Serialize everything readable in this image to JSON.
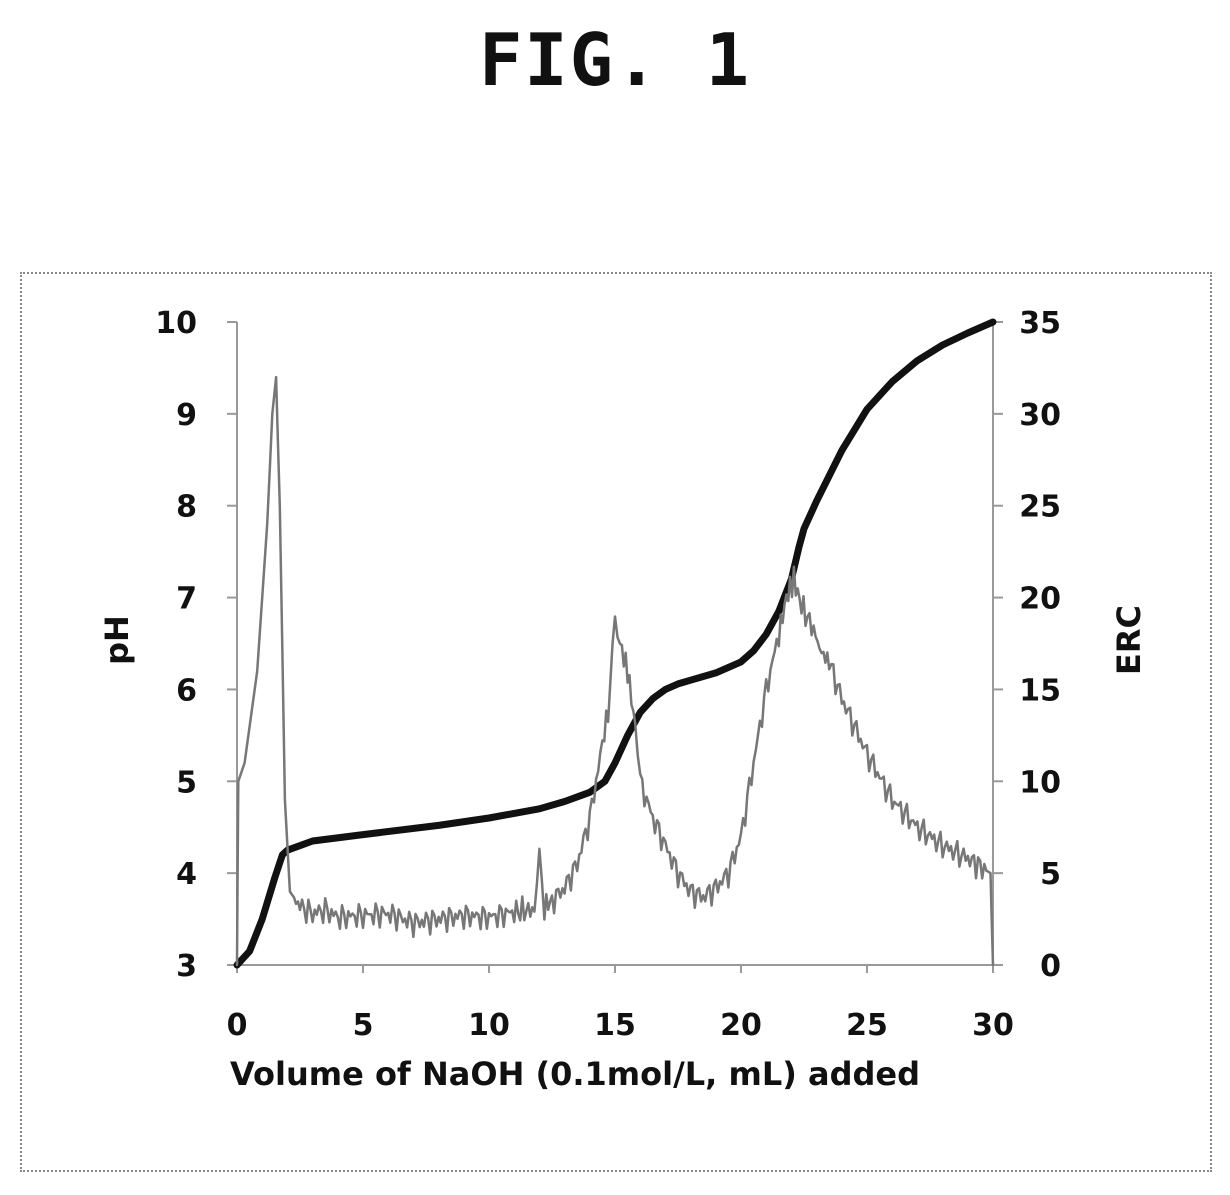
{
  "figure_label": "FIG. 1",
  "chart_data": {
    "type": "line",
    "title": "",
    "xlabel": "Volume of NaOH (0.1mol/L, mL) added",
    "ylabel_left": "pH",
    "ylabel_right": "ERC",
    "xlim": [
      0,
      30
    ],
    "ylim_left": [
      3,
      10
    ],
    "ylim_right": [
      0,
      35
    ],
    "x_ticks": [
      "0",
      "5",
      "10",
      "15",
      "20",
      "25",
      "30"
    ],
    "y_left_ticks": [
      "3",
      "4",
      "5",
      "6",
      "7",
      "8",
      "9",
      "10"
    ],
    "y_right_ticks": [
      "0",
      "5",
      "10",
      "15",
      "20",
      "25",
      "30",
      "35"
    ],
    "grid": false,
    "series": [
      {
        "axis": "left",
        "color": "#111111",
        "style": "thick",
        "x": [
          0,
          0.5,
          1.0,
          1.5,
          1.8,
          2.0,
          3,
          5,
          8,
          10,
          12,
          13,
          14,
          14.6,
          15,
          15.5,
          16,
          16.5,
          17,
          17.5,
          18,
          19,
          20,
          20.5,
          21,
          21.5,
          22,
          22.3,
          22.5,
          23,
          24,
          25,
          26,
          27,
          28,
          29,
          30
        ],
        "y": [
          3.0,
          3.15,
          3.5,
          3.95,
          4.2,
          4.25,
          4.35,
          4.42,
          4.52,
          4.6,
          4.7,
          4.78,
          4.88,
          5.0,
          5.2,
          5.5,
          5.75,
          5.9,
          6.0,
          6.06,
          6.1,
          6.18,
          6.3,
          6.42,
          6.6,
          6.85,
          7.2,
          7.55,
          7.75,
          8.05,
          8.6,
          9.05,
          9.35,
          9.58,
          9.75,
          9.88,
          10.0
        ]
      },
      {
        "axis": "right",
        "color": "#777777",
        "style": "thin-noisy",
        "x": [
          0,
          0.05,
          0.3,
          0.8,
          1.2,
          1.4,
          1.55,
          1.7,
          1.9,
          2.1,
          2.5,
          3,
          3.5,
          4,
          5,
          6,
          7,
          8,
          9,
          10,
          11,
          11.8,
          12.0,
          12.2,
          12.5,
          13,
          13.5,
          14,
          14.5,
          14.8,
          15.0,
          15.2,
          15.5,
          15.8,
          16,
          16.5,
          17,
          17.5,
          18,
          18.5,
          19,
          19.5,
          20,
          20.5,
          21,
          21.5,
          21.8,
          22.1,
          22.4,
          22.8,
          23.2,
          23.5,
          24,
          25,
          26,
          27,
          28,
          29,
          29.9,
          30.0
        ],
        "y": [
          0,
          10,
          11,
          16,
          24,
          30,
          32,
          25,
          9,
          4,
          3.2,
          2.8,
          3.0,
          2.6,
          2.7,
          2.8,
          2.3,
          2.5,
          2.7,
          2.6,
          2.9,
          3.0,
          6,
          3.2,
          3.5,
          4.2,
          5.5,
          8.0,
          12.0,
          14.5,
          19.0,
          17.5,
          16.0,
          13.0,
          10.0,
          8.0,
          6.5,
          5.0,
          4.0,
          3.7,
          4.2,
          5.0,
          7.0,
          11.0,
          15.0,
          18.0,
          20.0,
          21.0,
          19.5,
          18.5,
          17.0,
          16.5,
          14.5,
          11.5,
          9.0,
          7.5,
          6.5,
          5.8,
          5.0,
          0
        ]
      }
    ]
  }
}
